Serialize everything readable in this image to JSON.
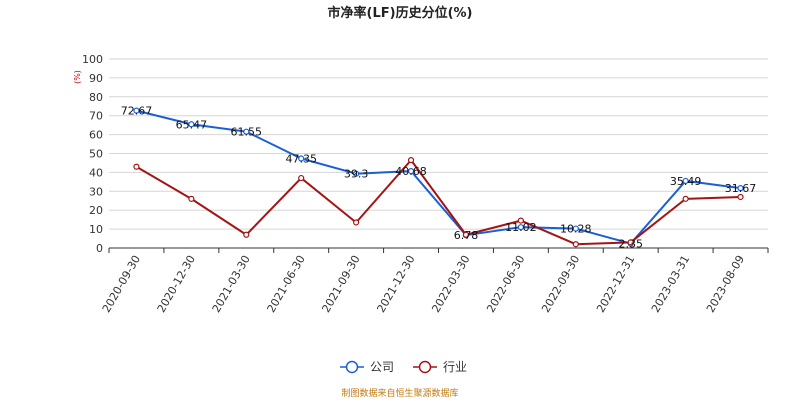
{
  "chart_data": {
    "type": "line",
    "title": "市净率(LF)历史分位(%)",
    "ylabel": "(%)",
    "ylim": [
      0,
      100
    ],
    "yticks": [
      0,
      10,
      20,
      30,
      40,
      50,
      60,
      70,
      80,
      90,
      100
    ],
    "grid": true,
    "legend_position": "bottom-center",
    "categories": [
      "2020-09-30",
      "2020-12-30",
      "2021-03-30",
      "2021-06-30",
      "2021-09-30",
      "2021-12-30",
      "2022-03-30",
      "2022-06-30",
      "2022-09-30",
      "2022-12-31",
      "2023-03-31",
      "2023-08-09"
    ],
    "series": [
      {
        "name": "公司",
        "color": "#1a5fd6",
        "values": [
          72.67,
          65.47,
          61.55,
          47.35,
          39.3,
          40.68,
          6.78,
          11.02,
          10.28,
          2.35,
          35.49,
          31.67
        ],
        "labels": [
          "72.67",
          "65.47",
          "61.55",
          "47.35",
          "39.3",
          "40.68",
          "6.78",
          "11.02",
          "10.28",
          "2.35",
          "35.49",
          "31.67"
        ]
      },
      {
        "name": "行业",
        "color": "#a31515",
        "values": [
          43,
          26,
          7,
          37,
          13.5,
          46.5,
          7,
          14.5,
          2,
          3,
          26,
          27
        ]
      }
    ]
  },
  "source_note": "制图数据来自恒生聚源数据库"
}
